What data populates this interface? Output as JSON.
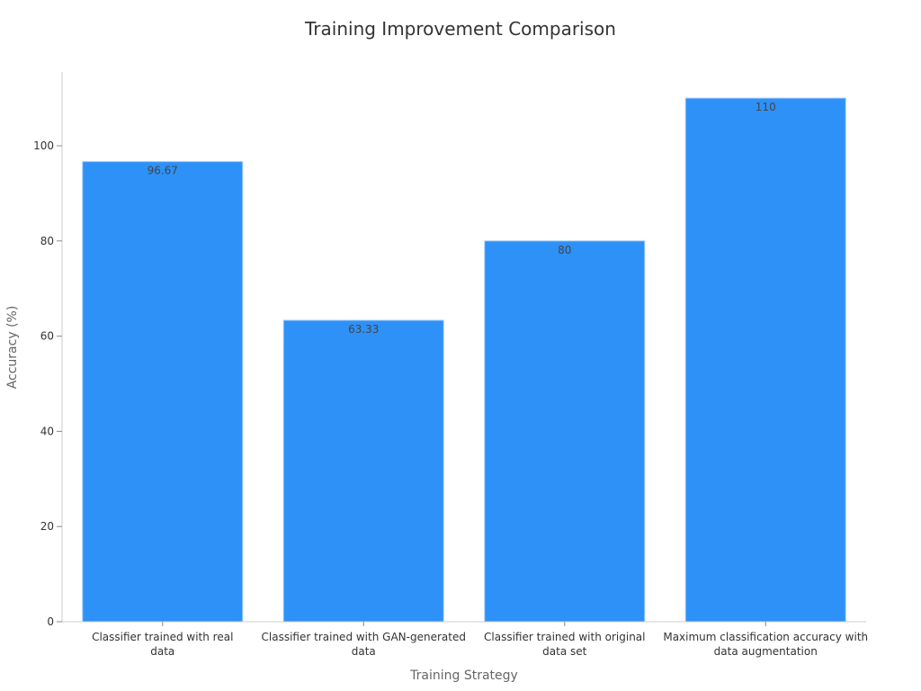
{
  "chart_data": {
    "type": "bar",
    "title": "Training Improvement Comparison",
    "xlabel": "Training Strategy",
    "ylabel": "Accuracy (%)",
    "categories": [
      [
        "Classifier trained with real",
        "data"
      ],
      [
        "Classifier trained with GAN-generated",
        "data"
      ],
      [
        "Classifier trained with original",
        "data set"
      ],
      [
        "Maximum classification accuracy with",
        "data augmentation"
      ]
    ],
    "values": [
      96.67,
      63.33,
      80,
      110
    ],
    "value_labels": [
      "96.67",
      "63.33",
      "80",
      "110"
    ],
    "yticks": [
      0,
      20,
      40,
      60,
      80,
      100
    ],
    "ylim": [
      0,
      115.5
    ],
    "grid": false,
    "bar_color": "#2e91f7",
    "bar_edge_color": "#9ecbf8"
  }
}
